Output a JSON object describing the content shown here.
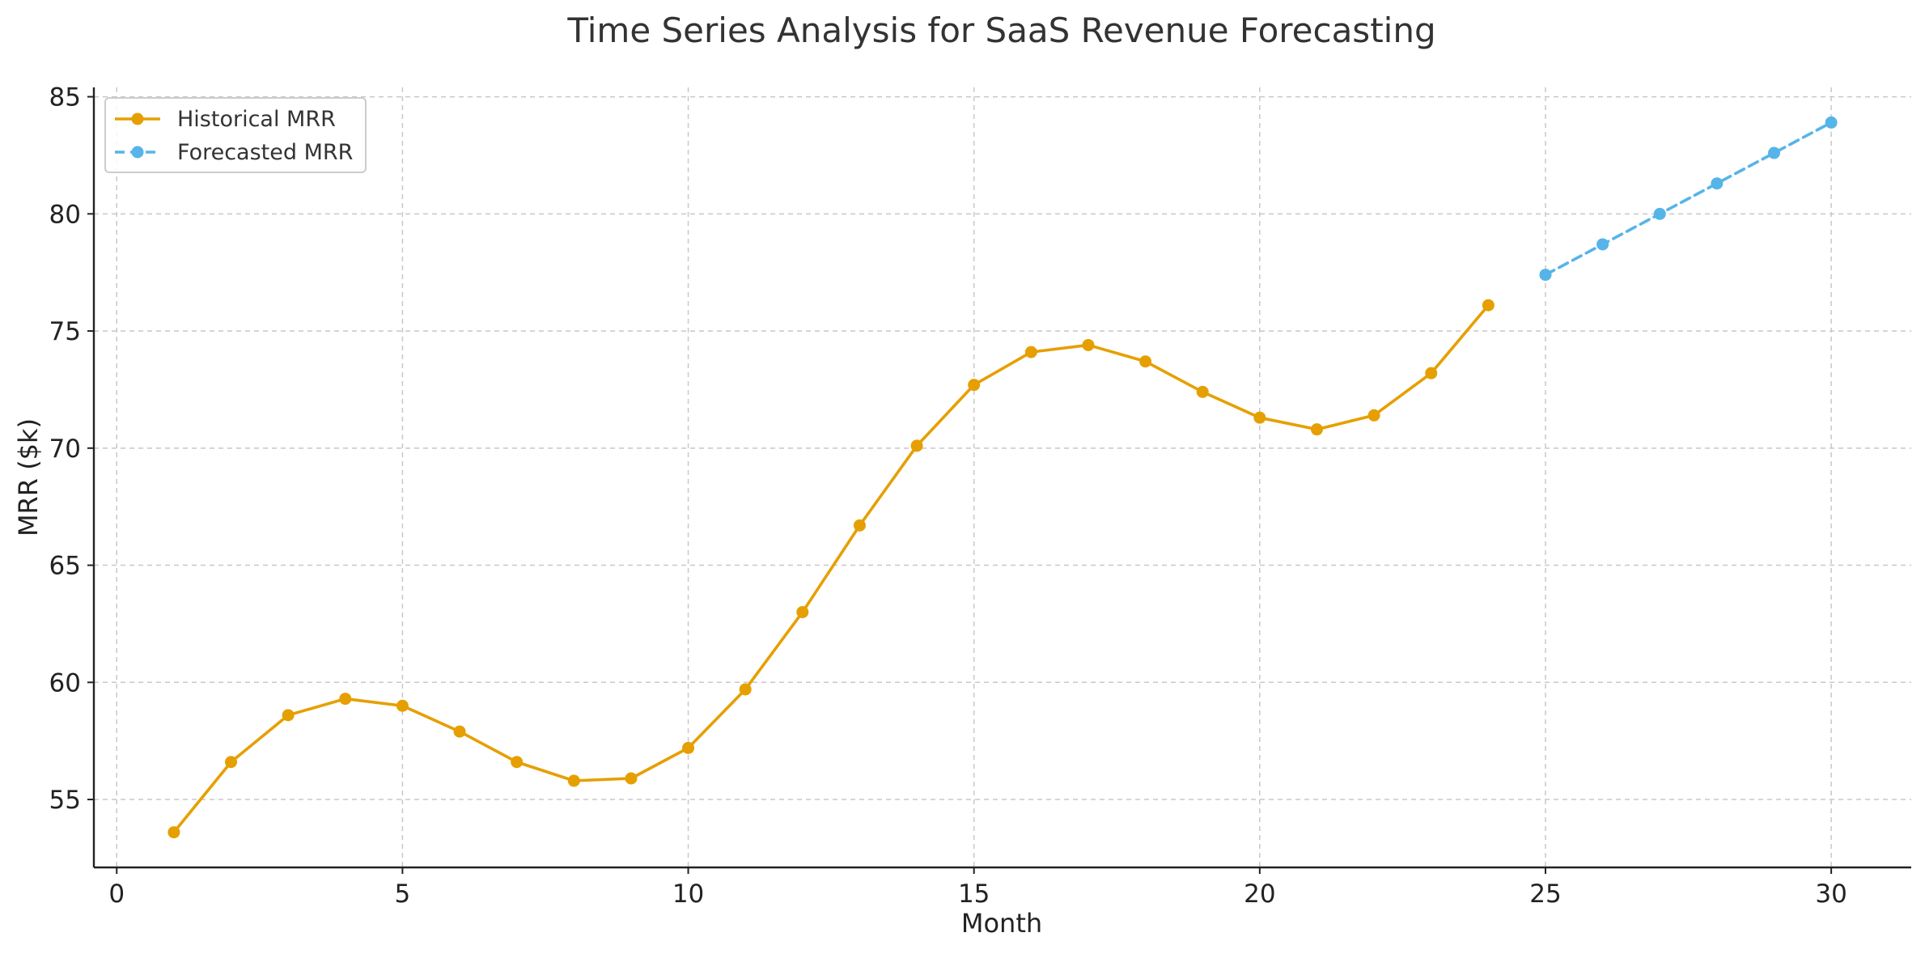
{
  "chart_data": {
    "type": "line",
    "title": "Time Series Analysis for SaaS Revenue Forecasting",
    "xlabel": "Month",
    "ylabel": "MRR ($k)",
    "xlim": [
      -0.4,
      31.4
    ],
    "ylim": [
      52.1,
      85.4
    ],
    "xticks": [
      0,
      5,
      10,
      15,
      20,
      25,
      30
    ],
    "yticks": [
      55,
      60,
      65,
      70,
      75,
      80,
      85
    ],
    "grid": true,
    "legend_position": "top-left",
    "series": [
      {
        "name": "Historical MRR",
        "color": "#E69F00",
        "line_style": "solid",
        "marker": "circle",
        "x": [
          1,
          2,
          3,
          4,
          5,
          6,
          7,
          8,
          9,
          10,
          11,
          12,
          13,
          14,
          15,
          16,
          17,
          18,
          19,
          20,
          21,
          22,
          23,
          24
        ],
        "y": [
          53.6,
          56.6,
          58.6,
          59.3,
          59.0,
          57.9,
          56.6,
          55.8,
          55.9,
          57.2,
          59.7,
          63.0,
          66.7,
          70.1,
          72.7,
          74.1,
          74.4,
          73.7,
          72.4,
          71.3,
          70.8,
          71.4,
          73.2,
          76.1
        ]
      },
      {
        "name": "Forecasted MRR",
        "color": "#56B4E9",
        "line_style": "dashed",
        "marker": "circle",
        "x": [
          25,
          26,
          27,
          28,
          29,
          30
        ],
        "y": [
          77.4,
          78.7,
          80.0,
          81.3,
          82.6,
          83.9
        ]
      }
    ]
  }
}
